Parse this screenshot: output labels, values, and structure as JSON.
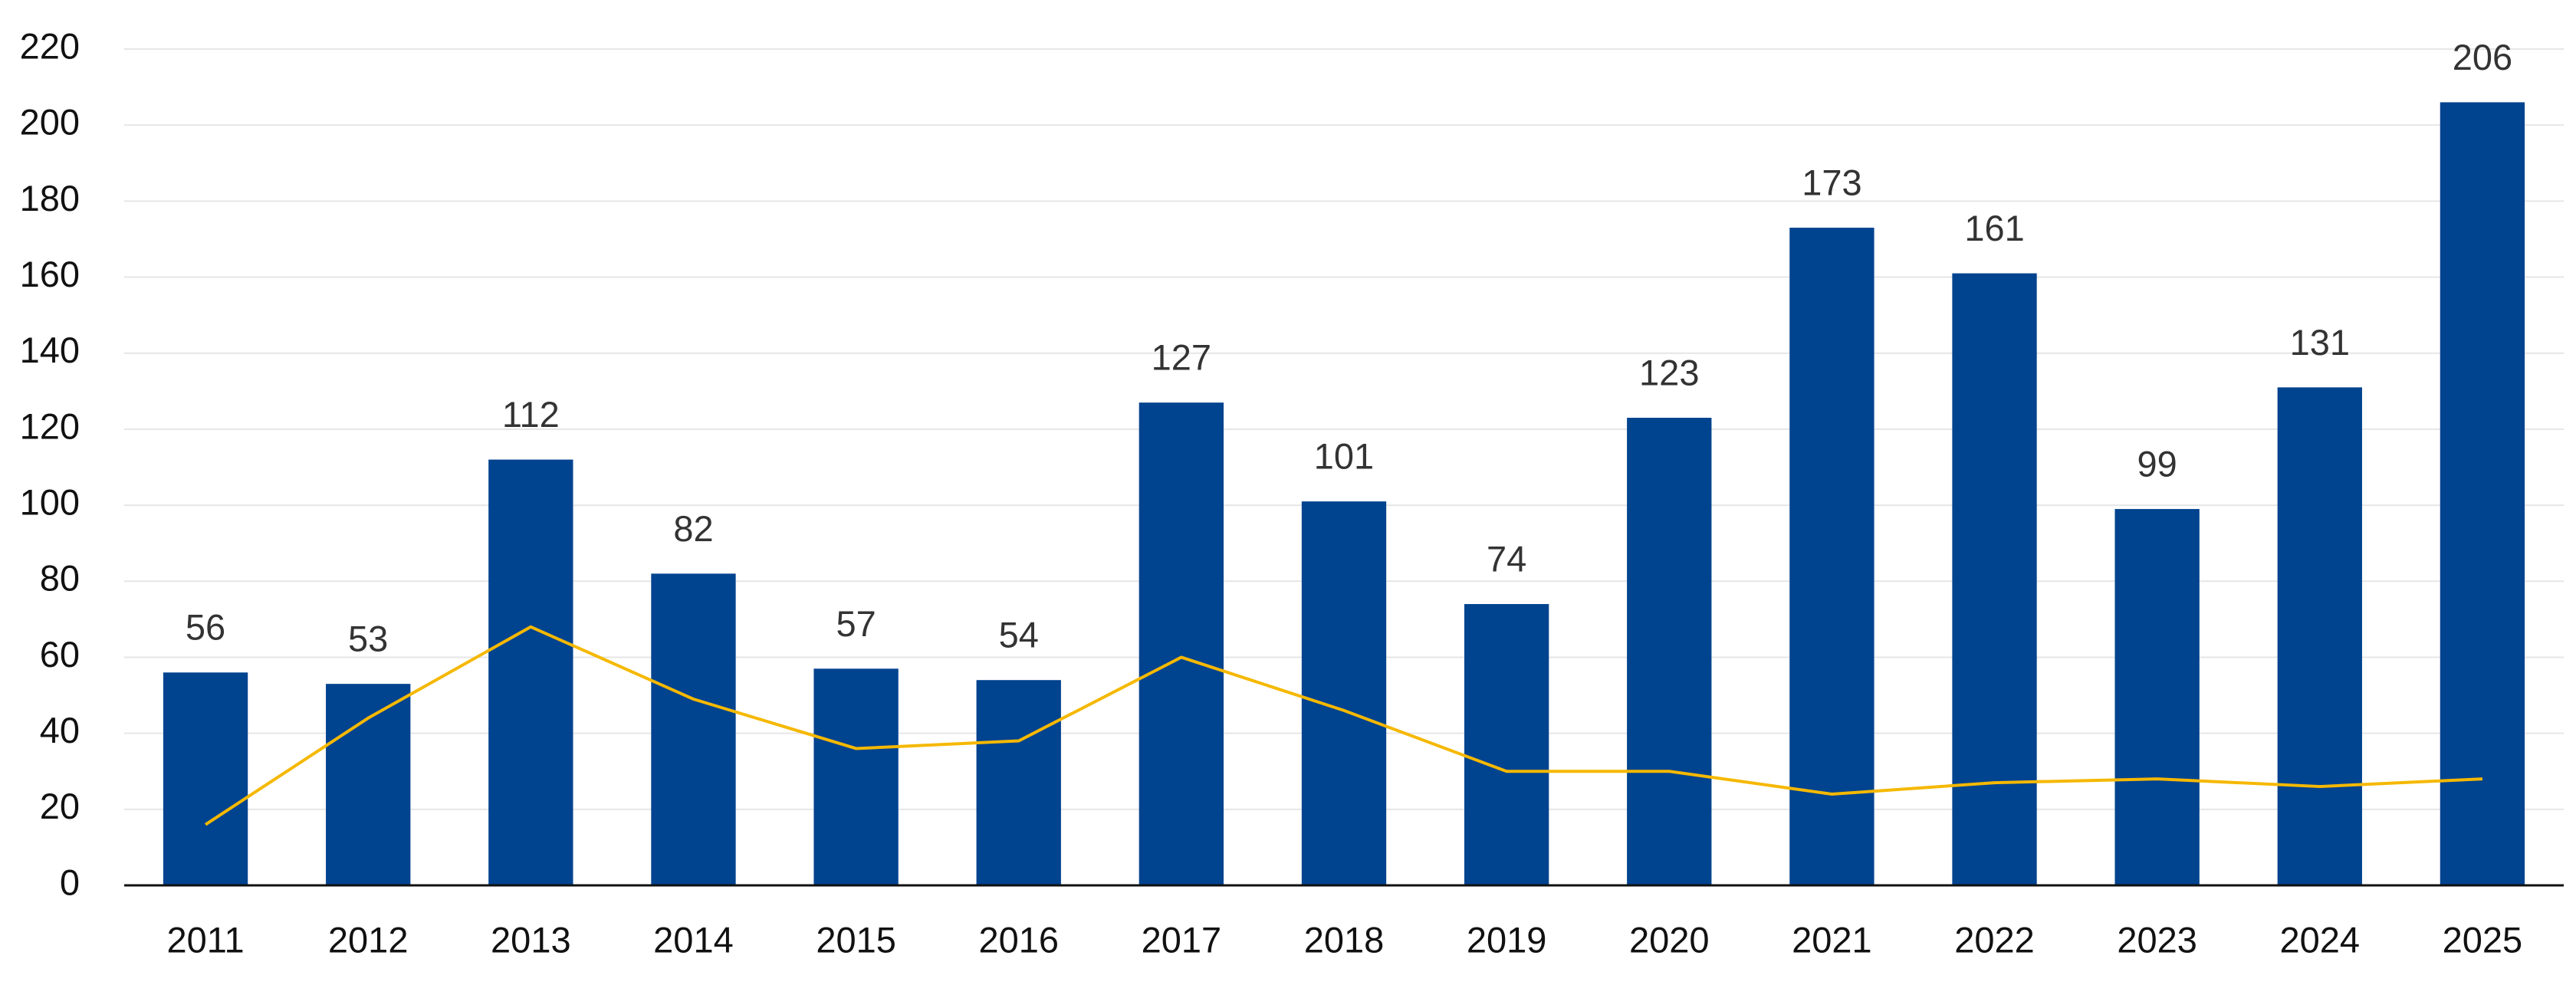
{
  "chart_data": {
    "type": "bar",
    "categories": [
      "2011",
      "2012",
      "2013",
      "2014",
      "2015",
      "2016",
      "2017",
      "2018",
      "2019",
      "2020",
      "2021",
      "2022",
      "2023",
      "2024",
      "2025"
    ],
    "series": [
      {
        "type": "bar",
        "color": "#00438f",
        "values": [
          56,
          53,
          112,
          82,
          57,
          54,
          127,
          101,
          74,
          123,
          173,
          161,
          99,
          131,
          206
        ],
        "data_labels": true
      },
      {
        "type": "line",
        "color": "#f5b800",
        "values": [
          16,
          44,
          68,
          49,
          36,
          38,
          60,
          46,
          30,
          30,
          24,
          27,
          28,
          26,
          28
        ]
      }
    ],
    "ylim": [
      0,
      220
    ],
    "yticks": [
      0,
      20,
      40,
      60,
      80,
      100,
      120,
      140,
      160,
      180,
      200,
      220
    ],
    "grid": true
  }
}
